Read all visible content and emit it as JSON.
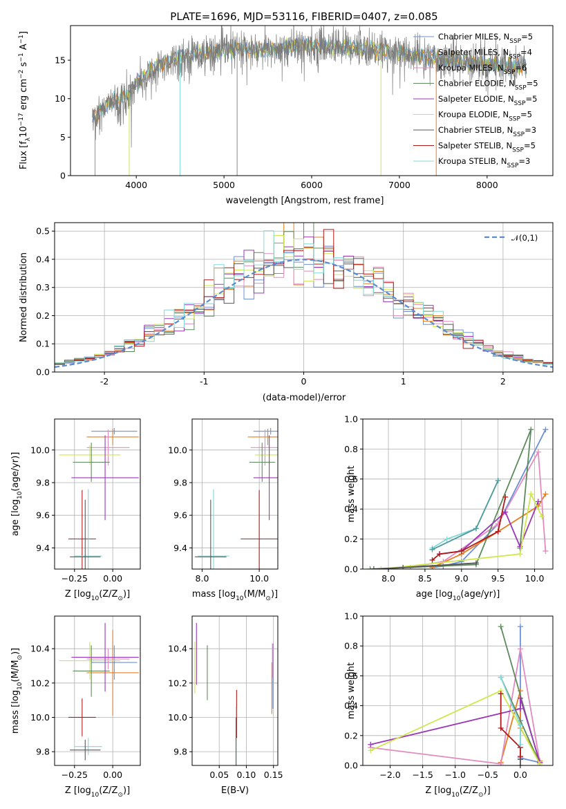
{
  "figure": {
    "title": "PLATE=1696, MJD=53116, FIBERID=0407, z=0.085"
  },
  "colors": {
    "chabrier_miles": "#6a8fd8",
    "salpeter_miles": "#e87c1e",
    "kroupa_miles": "#e28bbf",
    "chabrier_elodie": "#5c8a5c",
    "salpeter_elodie": "#9a36b8",
    "kroupa_elodie": "#cde84a",
    "chabrier_stelib": "#555555",
    "salpeter_stelib": "#b01818",
    "kroupa_stelib": "#80d8d8"
  },
  "chart_data": [
    {
      "id": "spectrum",
      "type": "line",
      "xlabel": "wavelength [Angstrom, rest frame]",
      "ylabel": "Flux [f",
      "ylabel_sub": "λ",
      "ylabel_mid": "10",
      "ylabel_sup1": "−17",
      "ylabel_mid2": " erg cm",
      "ylabel_sup2": "−2",
      "ylabel_mid3": " s",
      "ylabel_sup3": "−1",
      "ylabel_mid4": " A",
      "ylabel_sup4": "−1",
      "ylabel_end": "]",
      "xlim": [
        3250,
        8750
      ],
      "ylim": [
        0,
        19.5
      ],
      "xticks": [
        4000,
        5000,
        6000,
        7000,
        8000
      ],
      "yticks": [
        0,
        5,
        10,
        15
      ],
      "legend": [
        {
          "name": "Chabrier MILES, N",
          "sub": "SSP",
          "rest": "=5",
          "color": "#6a8fd8"
        },
        {
          "name": "Salpeter MILES, N",
          "sub": "SSP",
          "rest": "=4",
          "color": "#e87c1e"
        },
        {
          "name": "Kroupa MILES, N",
          "sub": "SSP",
          "rest": "=6",
          "color": "#e28bbf"
        },
        {
          "name": "Chabrier ELODIE, N",
          "sub": "SSP",
          "rest": "=5",
          "color": "#5c8a5c"
        },
        {
          "name": "Salpeter ELODIE, N",
          "sub": "SSP",
          "rest": "=5",
          "color": "#9a36b8"
        },
        {
          "name": "Kroupa ELODIE, N",
          "sub": "SSP",
          "rest": "=5",
          "color": "#cde84a"
        },
        {
          "name": "Chabrier STELIB, N",
          "sub": "SSP",
          "rest": "=3",
          "color": "#555555"
        },
        {
          "name": "Salpeter STELIB, N",
          "sub": "SSP",
          "rest": "=5",
          "color": "#b01818"
        },
        {
          "name": "Kroupa STELIB, N",
          "sub": "SSP",
          "rest": "=3",
          "color": "#80d8d8"
        }
      ],
      "continuum": {
        "x": [
          3500,
          3600,
          3700,
          3800,
          3900,
          4000,
          4100,
          4200,
          4300,
          4400,
          4500,
          4600,
          4700,
          4800,
          4900,
          5000,
          5200,
          5400,
          5600,
          5800,
          6000,
          6200,
          6400,
          6600,
          6800,
          7000,
          7200,
          7400,
          7600,
          7800,
          8000,
          8200,
          8400
        ],
        "y": [
          7.5,
          8.5,
          9.5,
          10.0,
          10.5,
          12.0,
          13.0,
          14.0,
          14.5,
          15.0,
          15.5,
          15.5,
          16.0,
          16.0,
          16.0,
          16.3,
          16.5,
          16.2,
          16.5,
          16.8,
          17.0,
          16.8,
          16.8,
          16.5,
          16.3,
          16.0,
          15.5,
          15.3,
          15.0,
          14.8,
          14.5,
          14.3,
          14.2
        ]
      },
      "drops": [
        {
          "x": 3530,
          "color": "#e87c1e"
        },
        {
          "x": 3920,
          "color": "#cde84a"
        },
        {
          "x": 4500,
          "color": "#80d8d8"
        },
        {
          "x": 5150,
          "color": "#888888"
        },
        {
          "x": 6790,
          "color": "#cde84a"
        },
        {
          "x": 7420,
          "color": "#e87c1e"
        }
      ]
    },
    {
      "id": "residuals",
      "type": "histogram",
      "xlabel": "(data-model)/error",
      "ylabel": "Normed distribution",
      "xlim": [
        -2.5,
        2.5
      ],
      "ylim": [
        0,
        0.53
      ],
      "xticks": [
        -2,
        -1,
        0,
        1,
        2
      ],
      "yticks": [
        0.0,
        0.1,
        0.2,
        0.3,
        0.4,
        0.5
      ],
      "legend_label": "𝒩(0,1)",
      "bin_width": 0.1
    },
    {
      "id": "age_vs_z",
      "type": "errorbar",
      "xlabel": "Z [log",
      "xlabel_sub": "10",
      "xlabel_end": "(Z/Z",
      "xlabel_sub2": "⊙",
      "xlabel_end2": ")]",
      "ylabel": "age  [log",
      "ylabel_sub": "10",
      "ylabel_end": "(age/yr)]",
      "xlim": [
        -0.38,
        0.18
      ],
      "ylim": [
        9.27,
        10.19
      ],
      "xticks": [
        -0.25,
        0.0
      ],
      "xtick_labels": [
        "−0.25",
        "0.00"
      ],
      "yticks": [
        9.4,
        9.6,
        9.8,
        10.0
      ],
      "points": [
        {
          "x": 0.01,
          "y": 10.115,
          "xerr": 0.15,
          "yerr": 0.02,
          "color": "#6a8fd8"
        },
        {
          "x": 0.0,
          "y": 10.08,
          "xerr": 0.17,
          "yerr": 0.05,
          "color": "#e87c1e"
        },
        {
          "x": -0.03,
          "y": 10.015,
          "xerr": 0.14,
          "yerr": 0.11,
          "color": "#e28bbf"
        },
        {
          "x": -0.15,
          "y": 9.97,
          "xerr": 0.2,
          "yerr": 0.06,
          "color": "#cde84a"
        },
        {
          "x": -0.14,
          "y": 9.925,
          "xerr": 0.12,
          "yerr": 0.12,
          "color": "#5c8a5c"
        },
        {
          "x": -0.05,
          "y": 9.83,
          "xerr": 0.22,
          "yerr": 0.26,
          "color": "#9a36b8"
        },
        {
          "x": -0.2,
          "y": 9.455,
          "xerr": 0.09,
          "yerr": 0.3,
          "color": "#b01818"
        },
        {
          "x": -0.16,
          "y": 9.35,
          "xerr": 0.09,
          "yerr": 0.41,
          "color": "#80d8d8"
        },
        {
          "x": -0.18,
          "y": 9.345,
          "xerr": 0.1,
          "yerr": 0.35,
          "color": "#555555"
        }
      ]
    },
    {
      "id": "age_vs_mass",
      "type": "errorbar",
      "xlabel": "mass [log",
      "xlabel_sub": "10",
      "xlabel_end": "(M/M",
      "xlabel_sub2": "⊙",
      "xlabel_end2": ")]",
      "xlim": [
        7.65,
        10.65
      ],
      "ylim": [
        9.27,
        10.19
      ],
      "xticks": [
        8.0,
        10.0
      ],
      "xtick_labels": [
        "8.0",
        "10.0"
      ],
      "yticks": [
        9.4,
        9.6,
        9.8,
        10.0
      ],
      "points": [
        {
          "x": 10.4,
          "y": 10.115,
          "xerr": 0.6,
          "yerr": 0.02,
          "color": "#6a8fd8"
        },
        {
          "x": 10.3,
          "y": 10.08,
          "xerr": 0.7,
          "yerr": 0.05,
          "color": "#e87c1e"
        },
        {
          "x": 10.2,
          "y": 10.015,
          "xerr": 0.5,
          "yerr": 0.11,
          "color": "#e28bbf"
        },
        {
          "x": 10.35,
          "y": 9.97,
          "xerr": 0.5,
          "yerr": 0.06,
          "color": "#cde84a"
        },
        {
          "x": 10.1,
          "y": 9.925,
          "xerr": 0.45,
          "yerr": 0.12,
          "color": "#5c8a5c"
        },
        {
          "x": 10.35,
          "y": 9.83,
          "xerr": 0.55,
          "yerr": 0.26,
          "color": "#9a36b8"
        },
        {
          "x": 10.0,
          "y": 9.455,
          "xerr": 0.65,
          "yerr": 0.3,
          "color": "#b01818"
        },
        {
          "x": 8.4,
          "y": 9.35,
          "xerr": 0.55,
          "yerr": 0.41,
          "color": "#80d8d8"
        },
        {
          "x": 8.3,
          "y": 9.345,
          "xerr": 0.55,
          "yerr": 0.35,
          "color": "#555555"
        }
      ]
    },
    {
      "id": "massweight_vs_age",
      "type": "line",
      "xlabel": "age  [log",
      "xlabel_sub": "10",
      "xlabel_end": "(age/yr)]",
      "ylabel": "mass weight",
      "xlim": [
        7.65,
        10.25
      ],
      "ylim": [
        0,
        1.0
      ],
      "xticks": [
        8.0,
        8.5,
        9.0,
        9.5,
        10.0
      ],
      "yticks": [
        0.0,
        0.2,
        0.4,
        0.6,
        0.8,
        1.0
      ],
      "series": [
        {
          "color": "#6a8fd8",
          "x": [
            8.6,
            8.75,
            9.0,
            9.5,
            10.15
          ],
          "y": [
            0.01,
            0.02,
            0.05,
            0.3,
            0.93
          ]
        },
        {
          "color": "#e87c1e",
          "x": [
            8.6,
            9.0,
            9.5,
            10.05,
            10.15
          ],
          "y": [
            0.01,
            0.1,
            0.25,
            0.42,
            0.5
          ]
        },
        {
          "color": "#e28bbf",
          "x": [
            8.3,
            8.75,
            9.5,
            10.05,
            10.15
          ],
          "y": [
            0.01,
            0.05,
            0.3,
            0.78,
            0.12
          ]
        },
        {
          "color": "#5c8a5c",
          "x": [
            7.75,
            9.2,
            9.95,
            9.8
          ],
          "y": [
            0.0,
            0.03,
            0.93,
            0.14
          ]
        },
        {
          "color": "#9a36b8",
          "x": [
            8.7,
            9.0,
            9.6,
            9.8,
            10.05
          ],
          "y": [
            0.1,
            0.12,
            0.38,
            0.15,
            0.45
          ]
        },
        {
          "color": "#cde84a",
          "x": [
            7.9,
            9.8,
            9.95,
            10.1
          ],
          "y": [
            0.0,
            0.1,
            0.5,
            0.35
          ]
        },
        {
          "color": "#555555",
          "x": [
            7.8,
            8.2,
            9.2
          ],
          "y": [
            0.0,
            0.01,
            0.04
          ]
        },
        {
          "color": "#b01818",
          "x": [
            8.6,
            8.7,
            9.0,
            9.5,
            9.6
          ],
          "y": [
            0.06,
            0.1,
            0.12,
            0.25,
            0.48
          ]
        },
        {
          "color": "#80d8d8",
          "x": [
            8.6,
            8.8,
            9.2,
            9.5
          ],
          "y": [
            0.14,
            0.2,
            0.27,
            0.59
          ]
        },
        {
          "color": "#4f9a9a",
          "x": [
            8.6,
            9.2,
            9.5
          ],
          "y": [
            0.13,
            0.27,
            0.59
          ]
        }
      ]
    },
    {
      "id": "mass_vs_z",
      "type": "errorbar",
      "xlabel": "Z [log",
      "xlabel_sub": "10",
      "xlabel_end": "(Z/Z",
      "xlabel_sub2": "⊙",
      "xlabel_end2": ")]",
      "ylabel": "mass [log",
      "ylabel_sub": "10",
      "ylabel_end": "(M/M",
      "ylabel_sub2": "⊙",
      "ylabel_end2": ")]",
      "xlim": [
        -0.38,
        0.18
      ],
      "ylim": [
        9.72,
        10.59
      ],
      "xticks": [
        -0.25,
        0.0
      ],
      "xtick_labels": [
        "−0.25",
        "0.00"
      ],
      "yticks": [
        9.8,
        10.0,
        10.2,
        10.4
      ],
      "points": [
        {
          "x": 0.01,
          "y": 10.32,
          "xerr": 0.15,
          "yerr": 0.1,
          "color": "#6a8fd8"
        },
        {
          "x": 0.0,
          "y": 10.26,
          "xerr": 0.17,
          "yerr": 0.25,
          "color": "#e87c1e"
        },
        {
          "x": -0.03,
          "y": 10.34,
          "xerr": 0.14,
          "yerr": 0.06,
          "color": "#e28bbf"
        },
        {
          "x": -0.15,
          "y": 10.33,
          "xerr": 0.2,
          "yerr": 0.11,
          "color": "#cde84a"
        },
        {
          "x": -0.14,
          "y": 10.27,
          "xerr": 0.12,
          "yerr": 0.15,
          "color": "#5c8a5c"
        },
        {
          "x": -0.05,
          "y": 10.35,
          "xerr": 0.22,
          "yerr": 0.2,
          "color": "#9a36b8"
        },
        {
          "x": -0.2,
          "y": 10.0,
          "xerr": 0.09,
          "yerr": 0.11,
          "color": "#b01818"
        },
        {
          "x": -0.16,
          "y": 9.83,
          "xerr": 0.09,
          "yerr": 0.05,
          "color": "#80d8d8"
        },
        {
          "x": -0.18,
          "y": 9.81,
          "xerr": 0.1,
          "yerr": 0.06,
          "color": "#555555"
        }
      ]
    },
    {
      "id": "mass_vs_ebv",
      "type": "errorbar",
      "xlabel": "E(B-V)",
      "xlim": [
        0.0,
        0.158
      ],
      "ylim": [
        9.72,
        10.59
      ],
      "xticks": [
        0.05,
        0.1,
        0.15
      ],
      "xtick_labels": [
        "0.05",
        "0.10",
        "0.15"
      ],
      "yticks": [
        9.8,
        10.0,
        10.2,
        10.4
      ],
      "points": [
        {
          "x": 0.149,
          "y": 10.24,
          "xerr": 0,
          "yerr": 0.19,
          "color": "#6a8fd8"
        },
        {
          "x": 0.147,
          "y": 10.17,
          "xerr": 0,
          "yerr": 0.15,
          "color": "#e87c1e"
        },
        {
          "x": 0.148,
          "y": 10.33,
          "xerr": 0,
          "yerr": 0.1,
          "color": "#e28bbf"
        },
        {
          "x": 0.005,
          "y": 10.29,
          "xerr": 0,
          "yerr": 0.15,
          "color": "#cde84a"
        },
        {
          "x": 0.028,
          "y": 10.26,
          "xerr": 0,
          "yerr": 0.16,
          "color": "#5c8a5c"
        },
        {
          "x": 0.008,
          "y": 10.37,
          "xerr": 0,
          "yerr": 0.18,
          "color": "#9a36b8"
        },
        {
          "x": 0.082,
          "y": 10.02,
          "xerr": 0,
          "yerr": 0.14,
          "color": "#b01818"
        },
        {
          "x": 0.081,
          "y": 9.82,
          "xerr": 0,
          "yerr": 0.24,
          "color": "#80d8d8"
        },
        {
          "x": 0.081,
          "y": 9.8,
          "xerr": 0,
          "yerr": 0.2,
          "color": "#555555"
        }
      ]
    },
    {
      "id": "massweight_vs_z",
      "type": "line",
      "xlabel": "Z [log",
      "xlabel_sub": "10",
      "xlabel_end": "(Z/Z",
      "xlabel_sub2": "⊙",
      "xlabel_end2": ")]",
      "ylabel": "mass weight",
      "xlim": [
        -2.42,
        0.5
      ],
      "ylim": [
        0,
        1.0
      ],
      "xticks": [
        -2.0,
        -1.5,
        -1.0,
        -0.5,
        0.0
      ],
      "xtick_labels": [
        "−2.0",
        "−1.5",
        "−1.0",
        "−0.5",
        "0.0"
      ],
      "yticks": [
        0.0,
        0.2,
        0.4,
        0.6,
        0.8,
        1.0
      ],
      "series": [
        {
          "color": "#6a8fd8",
          "x": [
            0.0,
            0.0,
            0.0,
            0.3
          ],
          "y": [
            0.93,
            0.3,
            0.05,
            0.02
          ]
        },
        {
          "color": "#e87c1e",
          "x": [
            -0.3,
            0.0,
            0.0,
            0.3
          ],
          "y": [
            0.02,
            0.5,
            0.25,
            0.03
          ]
        },
        {
          "color": "#e28bbf",
          "x": [
            -2.3,
            -0.3,
            0.0,
            0.3
          ],
          "y": [
            0.12,
            0.01,
            0.78,
            0.02
          ]
        },
        {
          "color": "#5c8a5c",
          "x": [
            -0.3,
            0.3,
            -0.3
          ],
          "y": [
            0.93,
            0.01,
            0.59
          ]
        },
        {
          "color": "#9a36b8",
          "x": [
            -2.3,
            0.0,
            0.0,
            0.3
          ],
          "y": [
            0.14,
            0.38,
            0.45,
            0.02
          ]
        },
        {
          "color": "#cde84a",
          "x": [
            -2.3,
            -0.3,
            0.3
          ],
          "y": [
            0.1,
            0.5,
            0.01
          ]
        },
        {
          "color": "#555555",
          "x": [
            0.0,
            0.0
          ],
          "y": [
            0.0,
            0.04
          ]
        },
        {
          "color": "#b01818",
          "x": [
            -0.3,
            -0.3,
            0.0,
            0.0
          ],
          "y": [
            0.48,
            0.25,
            0.12,
            0.06
          ]
        },
        {
          "color": "#80d8d8",
          "x": [
            -0.3,
            0.0,
            0.0
          ],
          "y": [
            0.59,
            0.27,
            0.14
          ]
        }
      ]
    }
  ]
}
